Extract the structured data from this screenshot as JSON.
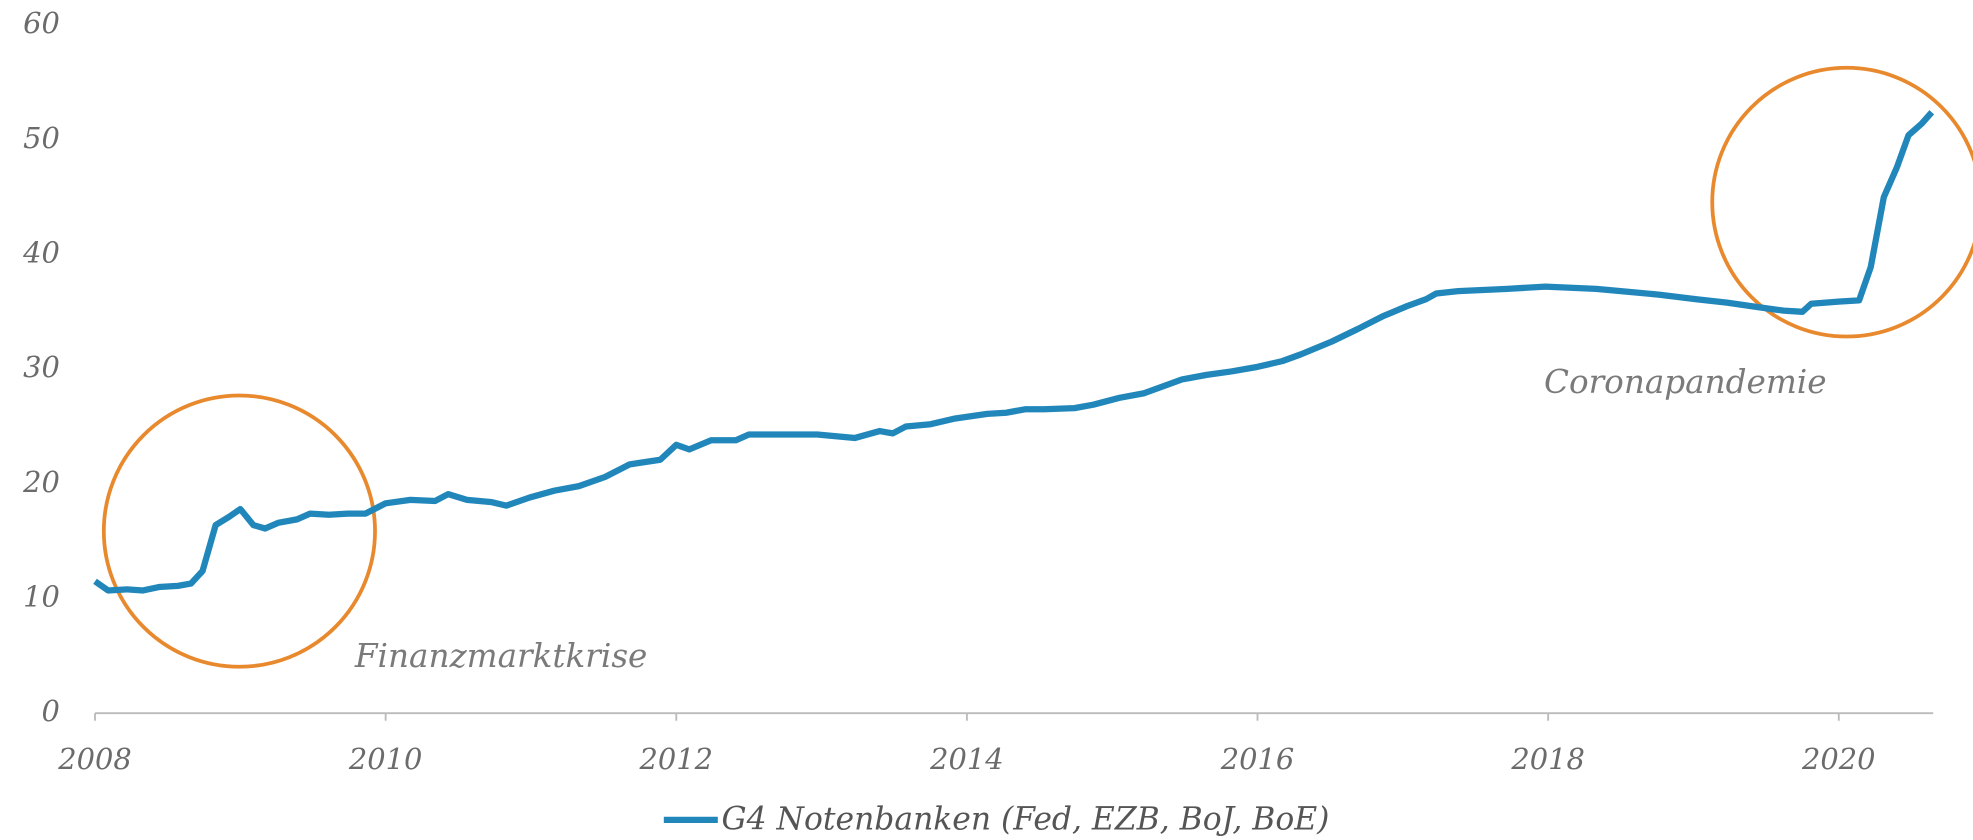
{
  "chart_data": {
    "type": "line",
    "x": [
      2008.0,
      2008.09,
      2008.22,
      2008.33,
      2008.44,
      2008.57,
      2008.66,
      2008.74,
      2008.83,
      2008.92,
      2009.0,
      2009.09,
      2009.17,
      2009.26,
      2009.39,
      2009.48,
      2009.61,
      2009.74,
      2009.86,
      2010.0,
      2010.17,
      2010.34,
      2010.43,
      2010.56,
      2010.73,
      2010.83,
      2010.99,
      2011.16,
      2011.33,
      2011.51,
      2011.68,
      2011.89,
      2012.0,
      2012.09,
      2012.24,
      2012.41,
      2012.5,
      2012.97,
      2013.23,
      2013.4,
      2013.49,
      2013.58,
      2013.75,
      2013.92,
      2014.14,
      2014.27,
      2014.4,
      2014.53,
      2014.74,
      2014.87,
      2015.05,
      2015.22,
      2015.35,
      2015.48,
      2015.65,
      2015.82,
      2016.0,
      2016.17,
      2016.3,
      2016.51,
      2016.69,
      2016.86,
      2017.03,
      2017.16,
      2017.23,
      2017.38,
      2017.72,
      2017.98,
      2018.33,
      2018.5,
      2018.76,
      2019.02,
      2019.23,
      2019.45,
      2019.62,
      2019.75,
      2019.81,
      2020.01,
      2020.14,
      2020.22,
      2020.31,
      2020.4,
      2020.48,
      2020.57,
      2020.64
    ],
    "series": [
      {
        "name": "G4 Notenbanken (Fed, EZB, BoJ, BoE)",
        "color": "#2187bb",
        "values": [
          11.5,
          10.7,
          10.8,
          10.7,
          11.0,
          11.1,
          11.3,
          12.4,
          16.4,
          17.1,
          17.8,
          16.4,
          16.1,
          16.6,
          16.9,
          17.4,
          17.3,
          17.4,
          17.4,
          18.3,
          18.6,
          18.5,
          19.1,
          18.6,
          18.4,
          18.1,
          18.8,
          19.4,
          19.8,
          20.6,
          21.7,
          22.1,
          23.4,
          23.0,
          23.8,
          23.8,
          24.3,
          24.3,
          24.0,
          24.6,
          24.4,
          25.0,
          25.2,
          25.7,
          26.1,
          26.2,
          26.5,
          26.5,
          26.6,
          26.9,
          27.5,
          27.9,
          28.5,
          29.1,
          29.5,
          29.8,
          30.2,
          30.7,
          31.3,
          32.4,
          33.5,
          34.6,
          35.5,
          36.1,
          36.6,
          36.8,
          37.0,
          37.2,
          37.0,
          36.8,
          36.5,
          36.1,
          35.8,
          35.4,
          35.1,
          35.0,
          35.7,
          35.9,
          36.0,
          38.9,
          45.0,
          47.6,
          50.4,
          51.4,
          52.4
        ]
      }
    ],
    "xlim": [
      2008,
      2020.65
    ],
    "xticks": [
      2008,
      2010,
      2012,
      2014,
      2016,
      2018,
      2020
    ],
    "ylim": [
      0,
      60
    ],
    "yticks": [
      0,
      10,
      20,
      30,
      40,
      50,
      60
    ],
    "annotations": [
      "Finanzmarktkrise",
      "Coronapandemie"
    ]
  }
}
